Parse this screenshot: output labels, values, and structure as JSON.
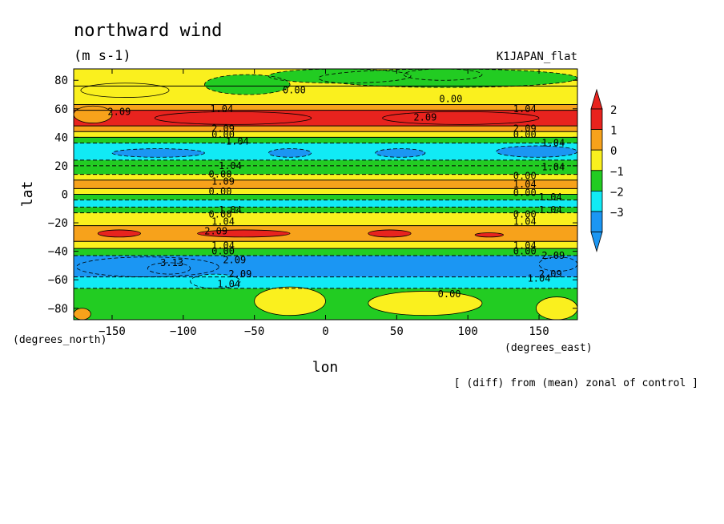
{
  "chart_data": {
    "type": "heatmap",
    "title": "northward wind",
    "subtitle": "(m s-1)",
    "run_label": "K1JAPAN_flat",
    "xlabel": "lon",
    "ylabel": "lat",
    "x_unit": "(degrees_east)",
    "y_unit": "(degrees_north)",
    "footnote": "[ (diff) from (mean) zonal of control ]",
    "xlim": [
      -177,
      177
    ],
    "ylim": [
      -88,
      88
    ],
    "x_ticks": [
      -150,
      -100,
      -50,
      0,
      50,
      100,
      150
    ],
    "x_tick_labels": [
      "−150",
      "−100",
      "−50",
      "0",
      "50",
      "100",
      "150"
    ],
    "y_ticks": [
      -80,
      -60,
      -40,
      -20,
      0,
      20,
      40,
      60,
      80
    ],
    "y_tick_labels": [
      "−80",
      "−60",
      "−40",
      "−20",
      "0",
      "20",
      "40",
      "60",
      "80"
    ],
    "colorbar": {
      "levels": [
        2,
        1,
        0,
        -1,
        -2,
        -3
      ],
      "labels": [
        "2",
        "1",
        "0",
        "−1",
        "−2",
        "−3"
      ],
      "colors": [
        "#e8231e",
        "#f7a21b",
        "#faf01e",
        "#22cc22",
        "#11eaf5",
        "#1b96f3"
      ]
    },
    "bands": [
      {
        "lat": [
          76,
          88
        ],
        "value": 0.4
      },
      {
        "lat": [
          63,
          76
        ],
        "value": 0.3
      },
      {
        "lat": [
          59,
          63
        ],
        "value": 1.5
      },
      {
        "lat": [
          48,
          59
        ],
        "value": 2.4
      },
      {
        "lat": [
          44,
          48
        ],
        "value": 1.5
      },
      {
        "lat": [
          40,
          44
        ],
        "value": 0.5
      },
      {
        "lat": [
          36,
          40
        ],
        "value": -0.6
      },
      {
        "lat": [
          24,
          36
        ],
        "value": -1.6
      },
      {
        "lat": [
          20,
          24
        ],
        "value": -0.6
      },
      {
        "lat": [
          14,
          20
        ],
        "value": -0.4
      },
      {
        "lat": [
          10,
          14
        ],
        "value": 0.5
      },
      {
        "lat": [
          4,
          10
        ],
        "value": 1.4
      },
      {
        "lat": [
          0,
          4
        ],
        "value": 0.4
      },
      {
        "lat": [
          -4,
          0
        ],
        "value": -0.5
      },
      {
        "lat": [
          -9,
          -4
        ],
        "value": -1.3
      },
      {
        "lat": [
          -13,
          -9
        ],
        "value": -0.5
      },
      {
        "lat": [
          -22,
          -13
        ],
        "value": 0.5
      },
      {
        "lat": [
          -33,
          -22
        ],
        "value": 1.4
      },
      {
        "lat": [
          -38,
          -33
        ],
        "value": 0.5
      },
      {
        "lat": [
          -43,
          -38
        ],
        "value": -0.5
      },
      {
        "lat": [
          -58,
          -43
        ],
        "value": -2.3
      },
      {
        "lat": [
          -66,
          -58
        ],
        "value": -1.4
      },
      {
        "lat": [
          -88,
          -66
        ],
        "value": -0.6
      }
    ],
    "regions": [
      {
        "lon": [
          -85,
          -25
        ],
        "lat": [
          70,
          84
        ],
        "value": -0.6
      },
      {
        "lon": [
          55,
          110
        ],
        "lat": [
          80,
          88
        ],
        "value": -1.5
      },
      {
        "lon": [
          -40,
          60
        ],
        "lat": [
          78,
          88
        ],
        "value": -0.4
      },
      {
        "lon": [
          -5,
          177
        ],
        "lat": [
          75,
          88
        ],
        "value": -0.5
      },
      {
        "lon": [
          -172,
          -110
        ],
        "lat": [
          68,
          78
        ],
        "value": 0.5
      },
      {
        "lon": [
          -177,
          -150
        ],
        "lat": [
          50,
          62
        ],
        "value": 1.5
      },
      {
        "lon": [
          -120,
          -10
        ],
        "lat": [
          49,
          58
        ],
        "value": 2.6
      },
      {
        "lon": [
          40,
          150
        ],
        "lat": [
          49,
          58
        ],
        "value": 2.6
      },
      {
        "lon": [
          -150,
          -85
        ],
        "lat": [
          26,
          32
        ],
        "value": -2.2
      },
      {
        "lon": [
          -40,
          -10
        ],
        "lat": [
          26,
          32
        ],
        "value": -2.2
      },
      {
        "lon": [
          35,
          70
        ],
        "lat": [
          26,
          32
        ],
        "value": -2.2
      },
      {
        "lon": [
          120,
          177
        ],
        "lat": [
          26,
          34
        ],
        "value": -2.2
      },
      {
        "lon": [
          -160,
          -130
        ],
        "lat": [
          -30,
          -25
        ],
        "value": 2.3
      },
      {
        "lon": [
          -90,
          -25
        ],
        "lat": [
          -30,
          -25
        ],
        "value": 2.3
      },
      {
        "lon": [
          30,
          60
        ],
        "lat": [
          -30,
          -25
        ],
        "value": 2.3
      },
      {
        "lon": [
          105,
          125
        ],
        "lat": [
          -30,
          -27
        ],
        "value": 2.3
      },
      {
        "lon": [
          -175,
          -75
        ],
        "lat": [
          -58,
          -44
        ],
        "value": -2.4
      },
      {
        "lon": [
          -125,
          -95
        ],
        "lat": [
          -56,
          -48
        ],
        "value": -3.2
      },
      {
        "lon": [
          150,
          177
        ],
        "lat": [
          -54,
          -44
        ],
        "value": -3.2
      },
      {
        "lon": [
          -95,
          -60
        ],
        "lat": [
          -66,
          -56
        ],
        "value": -1.5
      },
      {
        "lon": [
          -50,
          0
        ],
        "lat": [
          -85,
          -65
        ],
        "value": 0.5
      },
      {
        "lon": [
          30,
          110
        ],
        "lat": [
          -85,
          -68
        ],
        "value": 0.5
      },
      {
        "lon": [
          148,
          177
        ],
        "lat": [
          -88,
          -72
        ],
        "value": 0.5
      },
      {
        "lon": [
          -177,
          -165
        ],
        "lat": [
          -88,
          -80
        ],
        "value": 1.5
      }
    ],
    "contour_labels": [
      {
        "text": "0.00",
        "lon": -22,
        "lat": 73
      },
      {
        "text": "0.00",
        "lon": 88,
        "lat": 67
      },
      {
        "text": "2.09",
        "lon": -145,
        "lat": 58
      },
      {
        "text": "1.04",
        "lon": -73,
        "lat": 60
      },
      {
        "text": "2.09",
        "lon": 70,
        "lat": 54
      },
      {
        "text": "1.04",
        "lon": 140,
        "lat": 60
      },
      {
        "text": "2.09",
        "lon": -72,
        "lat": 46
      },
      {
        "text": "0.00",
        "lon": -72,
        "lat": 42
      },
      {
        "text": "1.04",
        "lon": -62,
        "lat": 37
      },
      {
        "text": "2.09",
        "lon": 140,
        "lat": 46
      },
      {
        "text": "0.00",
        "lon": 140,
        "lat": 42
      },
      {
        "text": "1.04",
        "lon": 160,
        "lat": 36
      },
      {
        "text": "1.04",
        "lon": -67,
        "lat": 20
      },
      {
        "text": "1.04",
        "lon": 160,
        "lat": 19
      },
      {
        "text": "0.00",
        "lon": -74,
        "lat": 14
      },
      {
        "text": "1.09",
        "lon": -72,
        "lat": 9
      },
      {
        "text": "0.00",
        "lon": -74,
        "lat": 2
      },
      {
        "text": "0.00",
        "lon": 140,
        "lat": 13
      },
      {
        "text": "1.04",
        "lon": 140,
        "lat": 7
      },
      {
        "text": "0.00",
        "lon": 140,
        "lat": 1
      },
      {
        "text": "1.04",
        "lon": 158,
        "lat": -2
      },
      {
        "text": "1.04",
        "lon": -67,
        "lat": -11
      },
      {
        "text": "0.00",
        "lon": -74,
        "lat": -14
      },
      {
        "text": "1.04",
        "lon": -72,
        "lat": -19
      },
      {
        "text": "2.09",
        "lon": -77,
        "lat": -26
      },
      {
        "text": "1.04",
        "lon": 158,
        "lat": -11
      },
      {
        "text": "0.00",
        "lon": 140,
        "lat": -14
      },
      {
        "text": "1.04",
        "lon": 140,
        "lat": -19
      },
      {
        "text": "1.04",
        "lon": -72,
        "lat": -36
      },
      {
        "text": "0.00",
        "lon": -72,
        "lat": -40
      },
      {
        "text": "2.09",
        "lon": -64,
        "lat": -46
      },
      {
        "text": "3.13",
        "lon": -108,
        "lat": -48
      },
      {
        "text": "1.04",
        "lon": 140,
        "lat": -36
      },
      {
        "text": "0.00",
        "lon": 140,
        "lat": -40
      },
      {
        "text": "2.09",
        "lon": 160,
        "lat": -43
      },
      {
        "text": "2.09",
        "lon": -60,
        "lat": -56
      },
      {
        "text": "1.04",
        "lon": -68,
        "lat": -63
      },
      {
        "text": "2.09",
        "lon": 158,
        "lat": -56
      },
      {
        "text": "1.04",
        "lon": 150,
        "lat": -59
      },
      {
        "text": "0.00",
        "lon": 87,
        "lat": -70
      }
    ]
  }
}
